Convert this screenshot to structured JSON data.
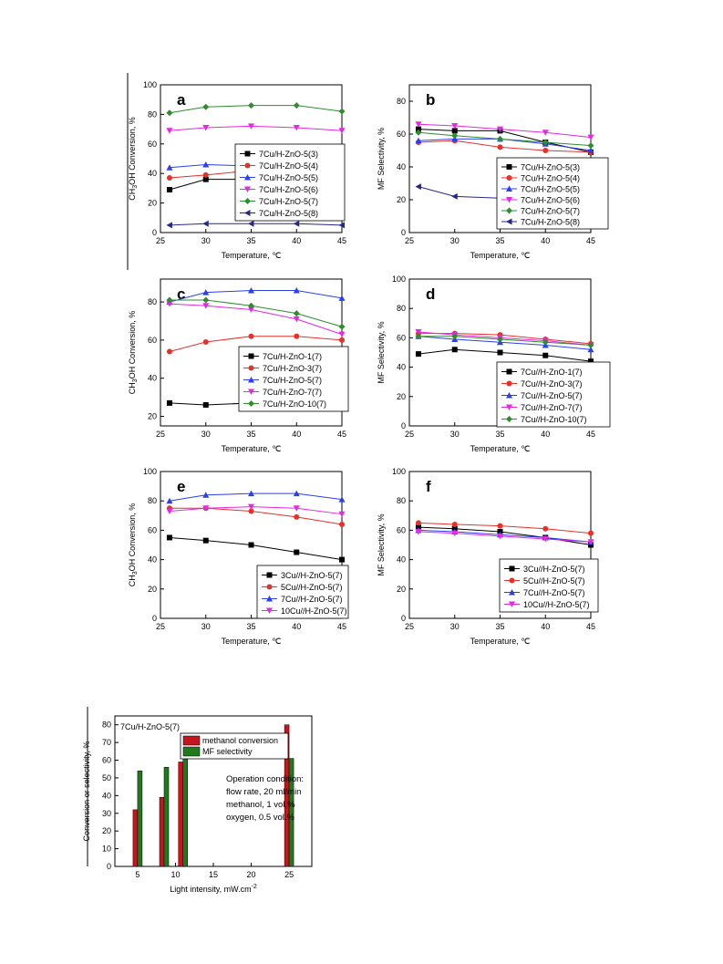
{
  "chart_data": [
    {
      "panel": "a",
      "type": "line",
      "xlabel": "Temperature, ℃",
      "ylabel": "CH3OH Conversion, %",
      "xlim": [
        25,
        45
      ],
      "ylim": [
        0,
        100
      ],
      "xticks": [
        25,
        30,
        35,
        40,
        45
      ],
      "yticks": [
        0,
        20,
        40,
        60,
        80,
        100
      ],
      "legend_position": "center-right",
      "x": [
        26,
        30,
        35,
        40,
        45
      ],
      "series": [
        {
          "name": "7Cu/H-ZnO-5(3)",
          "color": "#000000",
          "marker": "square",
          "values": [
            29,
            36,
            36,
            37,
            39
          ]
        },
        {
          "name": "7Cu/H-ZnO-5(4)",
          "color": "#e8302a",
          "marker": "circle",
          "values": [
            37,
            39,
            42,
            43,
            44
          ]
        },
        {
          "name": "7Cu/H-ZnO-5(5)",
          "color": "#2b3ff0",
          "marker": "triangle-up",
          "values": [
            44,
            46,
            45,
            44,
            44
          ]
        },
        {
          "name": "7Cu/H-ZnO-5(6)",
          "color": "#e628e6",
          "marker": "triangle-down",
          "values": [
            69,
            71,
            72,
            71,
            69
          ]
        },
        {
          "name": "7Cu/H-ZnO-5(7)",
          "color": "#2f8c2f",
          "marker": "diamond",
          "values": [
            81,
            85,
            86,
            86,
            82
          ]
        },
        {
          "name": "7Cu/H-ZnO-5(8)",
          "color": "#27278a",
          "marker": "triangle-left",
          "values": [
            5,
            6,
            6,
            6,
            5
          ]
        }
      ]
    },
    {
      "panel": "b",
      "type": "line",
      "xlabel": "Temperature, ℃",
      "ylabel": "MF Selectivity, %",
      "xlim": [
        25,
        45
      ],
      "ylim": [
        0,
        90
      ],
      "xticks": [
        25,
        30,
        35,
        40,
        45
      ],
      "yticks": [
        0,
        20,
        40,
        60,
        80
      ],
      "legend_position": "lower-right",
      "x": [
        26,
        30,
        35,
        40,
        45
      ],
      "series": [
        {
          "name": "7Cu/H-ZnO-5(3)",
          "color": "#000000",
          "marker": "square",
          "values": [
            63,
            62,
            62,
            55,
            49
          ]
        },
        {
          "name": "7Cu/H-ZnO-5(4)",
          "color": "#e8302a",
          "marker": "circle",
          "values": [
            55,
            56,
            52,
            50,
            49
          ]
        },
        {
          "name": "7Cu/H-ZnO-5(5)",
          "color": "#2b3ff0",
          "marker": "triangle-up",
          "values": [
            56,
            57,
            57,
            54,
            50
          ]
        },
        {
          "name": "7Cu/H-ZnO-5(6)",
          "color": "#e628e6",
          "marker": "triangle-down",
          "values": [
            66,
            65,
            63,
            61,
            58
          ]
        },
        {
          "name": "7Cu/H-ZnO-5(7)",
          "color": "#2f8c2f",
          "marker": "diamond",
          "values": [
            61,
            59,
            57,
            55,
            53
          ]
        },
        {
          "name": "7Cu/H-ZnO-5(8)",
          "color": "#27278a",
          "marker": "triangle-left",
          "values": [
            28,
            22,
            21,
            21,
            21
          ]
        }
      ]
    },
    {
      "panel": "c",
      "type": "line",
      "xlabel": "Temperature, ℃",
      "ylabel": "CH3OH Conversion, %",
      "xlim": [
        25,
        45
      ],
      "ylim": [
        15,
        92
      ],
      "xticks": [
        25,
        30,
        35,
        40,
        45
      ],
      "yticks": [
        20,
        40,
        60,
        80
      ],
      "legend_position": "lower-right",
      "x": [
        26,
        30,
        35,
        40,
        45
      ],
      "series": [
        {
          "name": "7Cu/H-ZnO-1(7)",
          "color": "#000000",
          "marker": "square",
          "values": [
            27,
            26,
            27,
            27,
            26
          ]
        },
        {
          "name": "7Cu/H-ZnO-3(7)",
          "color": "#e8302a",
          "marker": "circle",
          "values": [
            54,
            59,
            62,
            62,
            60
          ]
        },
        {
          "name": "7Cu/H-ZnO-5(7)",
          "color": "#2b3ff0",
          "marker": "triangle-up",
          "values": [
            80,
            85,
            86,
            86,
            82
          ]
        },
        {
          "name": "7Cu/H-ZnO-7(7)",
          "color": "#e628e6",
          "marker": "triangle-down",
          "values": [
            79,
            78,
            76,
            71,
            63
          ]
        },
        {
          "name": "7Cu/H-ZnO-10(7)",
          "color": "#2f8c2f",
          "marker": "diamond",
          "values": [
            81,
            81,
            78,
            74,
            67
          ]
        }
      ]
    },
    {
      "panel": "d",
      "type": "line",
      "xlabel": "Temperature, ℃",
      "ylabel": "MF Selectivity, %",
      "xlim": [
        25,
        45
      ],
      "ylim": [
        0,
        100
      ],
      "xticks": [
        25,
        30,
        35,
        40,
        45
      ],
      "yticks": [
        0,
        20,
        40,
        60,
        80,
        100
      ],
      "legend_position": "lower-right",
      "x": [
        26,
        30,
        35,
        40,
        45
      ],
      "series": [
        {
          "name": "7Cu//H-ZnO-1(7)",
          "color": "#000000",
          "marker": "square",
          "values": [
            49,
            52,
            50,
            48,
            44
          ]
        },
        {
          "name": "7Cu//H-ZnO-3(7)",
          "color": "#e8302a",
          "marker": "circle",
          "values": [
            63,
            63,
            62,
            59,
            56
          ]
        },
        {
          "name": "7Cu//H-ZnO-5(7)",
          "color": "#2b3ff0",
          "marker": "triangle-up",
          "values": [
            61,
            59,
            57,
            55,
            52
          ]
        },
        {
          "name": "7Cu//H-ZnO-7(7)",
          "color": "#e628e6",
          "marker": "triangle-down",
          "values": [
            64,
            62,
            60,
            58,
            55
          ]
        },
        {
          "name": "7Cu//H-ZnO-10(7)",
          "color": "#2f8c2f",
          "marker": "diamond",
          "values": [
            61,
            61,
            59,
            57,
            55
          ]
        }
      ]
    },
    {
      "panel": "e",
      "type": "line",
      "xlabel": "Temperature, ℃",
      "ylabel": "CH3OH Conversion, %",
      "xlim": [
        25,
        45
      ],
      "ylim": [
        0,
        100
      ],
      "xticks": [
        25,
        30,
        35,
        40,
        45
      ],
      "yticks": [
        0,
        20,
        40,
        60,
        80,
        100
      ],
      "legend_position": "lower-right",
      "x": [
        26,
        30,
        35,
        40,
        45
      ],
      "series": [
        {
          "name": "3Cu//H-ZnO-5(7)",
          "color": "#000000",
          "marker": "square",
          "values": [
            55,
            53,
            50,
            45,
            40
          ]
        },
        {
          "name": "5Cu//H-ZnO-5(7)",
          "color": "#e8302a",
          "marker": "circle",
          "values": [
            75,
            75,
            73,
            69,
            64
          ]
        },
        {
          "name": "7Cu//H-ZnO-5(7)",
          "color": "#2b3ff0",
          "marker": "triangle-up",
          "values": [
            80,
            84,
            85,
            85,
            81
          ]
        },
        {
          "name": "10Cu//H-ZnO-5(7)",
          "color": "#e628e6",
          "marker": "triangle-down",
          "values": [
            73,
            75,
            76,
            75,
            71
          ]
        }
      ]
    },
    {
      "panel": "f",
      "type": "line",
      "xlabel": "Temperature, ℃",
      "ylabel": "MF Selectivity, %",
      "xlim": [
        25,
        45
      ],
      "ylim": [
        0,
        100
      ],
      "xticks": [
        25,
        30,
        35,
        40,
        45
      ],
      "yticks": [
        0,
        20,
        40,
        60,
        80,
        100
      ],
      "legend_position": "lower-right",
      "x": [
        26,
        30,
        35,
        40,
        45
      ],
      "series": [
        {
          "name": "3Cu//H-ZnO-5(7)",
          "color": "#000000",
          "marker": "square",
          "values": [
            62,
            61,
            59,
            55,
            50
          ]
        },
        {
          "name": "5Cu//H-ZnO-5(7)",
          "color": "#e8302a",
          "marker": "circle",
          "values": [
            65,
            64,
            63,
            61,
            58
          ]
        },
        {
          "name": "7Cu//H-ZnO-5(7)",
          "color": "#2b3ff0",
          "marker": "triangle-up",
          "values": [
            60,
            59,
            57,
            55,
            52
          ]
        },
        {
          "name": "10Cu//H-ZnO-5(7)",
          "color": "#e628e6",
          "marker": "triangle-down",
          "values": [
            59,
            58,
            56,
            54,
            52
          ]
        }
      ]
    },
    {
      "panel": "",
      "type": "bar",
      "title": "7Cu/H-ZnO-5(7)",
      "xlabel": "Light intensity, mW.cm-2",
      "ylabel": "Conversion or selectivity, %",
      "xlim": [
        2,
        28
      ],
      "ylim": [
        0,
        85
      ],
      "xticks": [
        5,
        10,
        15,
        20,
        25
      ],
      "yticks": [
        0,
        10,
        20,
        30,
        40,
        50,
        60,
        70,
        80
      ],
      "legend_position": "top-center",
      "annotation": [
        "Operation condition:",
        "flow rate, 20 ml/min",
        "methanol, 1 vol.%",
        "oxygen, 0.5 vol.%"
      ],
      "x": [
        5,
        8.5,
        11,
        25
      ],
      "series": [
        {
          "name": "methanol conversion",
          "color": "#c4161c",
          "values": [
            32,
            39,
            59,
            80
          ]
        },
        {
          "name": "MF selectivity",
          "color": "#1f7a1f",
          "values": [
            54,
            56,
            61,
            61
          ]
        }
      ]
    }
  ]
}
